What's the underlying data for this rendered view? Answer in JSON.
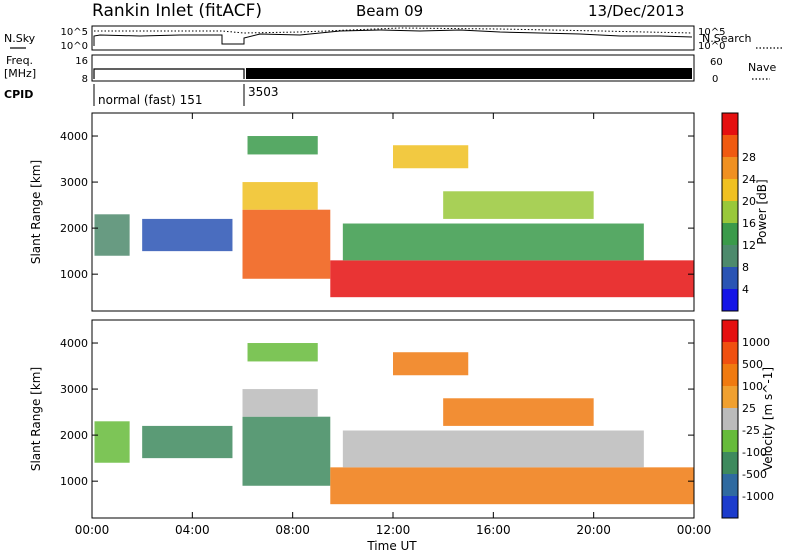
{
  "header": {
    "station": "Rankin Inlet (fitACF)",
    "beam": "Beam 09",
    "date": "13/Dec/2013"
  },
  "panels": {
    "nsky_label": "N.Sky",
    "nsearch_label": "N.Search",
    "noise_ticks": [
      "10^5",
      "10^0"
    ],
    "freq_label_1": "Freq.",
    "freq_label_2": "[MHz]",
    "freq_ticks": [
      "16",
      "8"
    ],
    "nave_label": "Nave",
    "nave_ticks": [
      "60",
      "0"
    ],
    "cpid_label": "CPID",
    "cpid_segments": [
      {
        "label": "normal (fast) 151",
        "start_hour": 0
      },
      {
        "label": "3503",
        "start_hour": 6
      }
    ]
  },
  "chart_data": [
    {
      "type": "heatmap",
      "name": "power",
      "xlabel": "",
      "ylabel": "Slant Range [km]",
      "xlim": [
        0,
        24
      ],
      "ylim": [
        200,
        4500
      ],
      "yticks": [
        1000,
        2000,
        3000,
        4000
      ],
      "colorbar": {
        "label": "Power [dB]",
        "ticks": [
          "4",
          "8",
          "12",
          "16",
          "20",
          "24",
          "28"
        ],
        "colors": [
          "#1515e6",
          "#2a54b4",
          "#4d8a6c",
          "#3a9a4a",
          "#99c83a",
          "#f0c020",
          "#f09020",
          "#f05a10",
          "#e51010"
        ]
      },
      "regions": [
        {
          "x": [
            0.1,
            1.5
          ],
          "y": [
            1400,
            2300
          ],
          "level": 2
        },
        {
          "x": [
            2.0,
            5.6
          ],
          "y": [
            1500,
            2200
          ],
          "level": 1
        },
        {
          "x": [
            6.0,
            9.5
          ],
          "y": [
            900,
            2400
          ],
          "level": 7
        },
        {
          "x": [
            6.0,
            9.0
          ],
          "y": [
            2400,
            3000
          ],
          "level": 5
        },
        {
          "x": [
            6.2,
            9.0
          ],
          "y": [
            3600,
            4000
          ],
          "level": 3
        },
        {
          "x": [
            9.5,
            24.0
          ],
          "y": [
            500,
            1300
          ],
          "level": 8
        },
        {
          "x": [
            10.0,
            22.0
          ],
          "y": [
            1300,
            2100
          ],
          "level": 3
        },
        {
          "x": [
            12.0,
            15.0
          ],
          "y": [
            3300,
            3800
          ],
          "level": 5
        },
        {
          "x": [
            14.0,
            20.0
          ],
          "y": [
            2200,
            2800
          ],
          "level": 4
        }
      ]
    },
    {
      "type": "heatmap",
      "name": "velocity",
      "xlabel": "Time UT",
      "ylabel": "Slant Range [km]",
      "xlim": [
        0,
        24
      ],
      "ylim": [
        200,
        4500
      ],
      "xticks": [
        "00:00",
        "04:00",
        "08:00",
        "12:00",
        "16:00",
        "20:00",
        "00:00"
      ],
      "yticks": [
        1000,
        2000,
        3000,
        4000
      ],
      "colorbar": {
        "label": "Velocity [m s^-1]",
        "ticks": [
          "1000",
          "500",
          "100",
          "25",
          "-25",
          "-100",
          "-500",
          "-1000"
        ],
        "colors": [
          "#1c3ccc",
          "#2f6aa0",
          "#3e8a5e",
          "#66bb3a",
          "#bbbbbb",
          "#f0a030",
          "#f07a10",
          "#f05010",
          "#e51010"
        ]
      },
      "regions": [
        {
          "x": [
            0.1,
            1.5
          ],
          "y": [
            1400,
            2300
          ],
          "level": 3
        },
        {
          "x": [
            2.0,
            5.6
          ],
          "y": [
            1500,
            2200
          ],
          "level": 2
        },
        {
          "x": [
            6.0,
            9.5
          ],
          "y": [
            900,
            2400
          ],
          "level": 2
        },
        {
          "x": [
            6.0,
            9.0
          ],
          "y": [
            2400,
            3000
          ],
          "level": 4
        },
        {
          "x": [
            6.2,
            9.0
          ],
          "y": [
            3600,
            4000
          ],
          "level": 3
        },
        {
          "x": [
            9.5,
            24.0
          ],
          "y": [
            500,
            1300
          ],
          "level": 6
        },
        {
          "x": [
            10.0,
            22.0
          ],
          "y": [
            1300,
            2100
          ],
          "level": 4
        },
        {
          "x": [
            12.0,
            15.0
          ],
          "y": [
            3300,
            3800
          ],
          "level": 6
        },
        {
          "x": [
            14.0,
            20.0
          ],
          "y": [
            2200,
            2800
          ],
          "level": 6
        }
      ]
    }
  ]
}
